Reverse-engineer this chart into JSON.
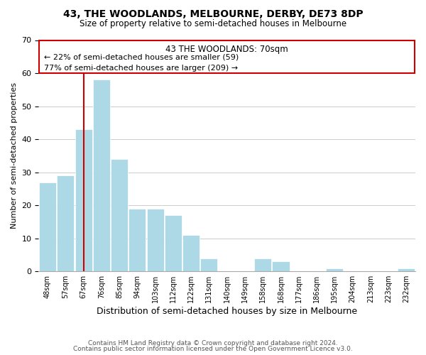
{
  "title": "43, THE WOODLANDS, MELBOURNE, DERBY, DE73 8DP",
  "subtitle": "Size of property relative to semi-detached houses in Melbourne",
  "xlabel": "Distribution of semi-detached houses by size in Melbourne",
  "ylabel": "Number of semi-detached properties",
  "footer_line1": "Contains HM Land Registry data © Crown copyright and database right 2024.",
  "footer_line2": "Contains public sector information licensed under the Open Government Licence v3.0.",
  "annotation_title": "43 THE WOODLANDS: 70sqm",
  "annotation_line1": "← 22% of semi-detached houses are smaller (59)",
  "annotation_line2": "77% of semi-detached houses are larger (209) →",
  "bar_labels": [
    "48sqm",
    "57sqm",
    "67sqm",
    "76sqm",
    "85sqm",
    "94sqm",
    "103sqm",
    "112sqm",
    "122sqm",
    "131sqm",
    "140sqm",
    "149sqm",
    "158sqm",
    "168sqm",
    "177sqm",
    "186sqm",
    "195sqm",
    "204sqm",
    "213sqm",
    "223sqm",
    "232sqm"
  ],
  "bar_values": [
    27,
    29,
    43,
    58,
    34,
    19,
    19,
    17,
    11,
    4,
    0,
    0,
    4,
    3,
    0,
    0,
    1,
    0,
    0,
    0,
    1
  ],
  "bar_color": "#add8e6",
  "bar_edge_color": "#add8e6",
  "vline_color": "#cc0000",
  "vline_x_index": 2,
  "annotation_box_edge_color": "#cc0000",
  "ylim": [
    0,
    70
  ],
  "yticks": [
    0,
    10,
    20,
    30,
    40,
    50,
    60,
    70
  ],
  "background_color": "#ffffff",
  "grid_color": "#cccccc"
}
